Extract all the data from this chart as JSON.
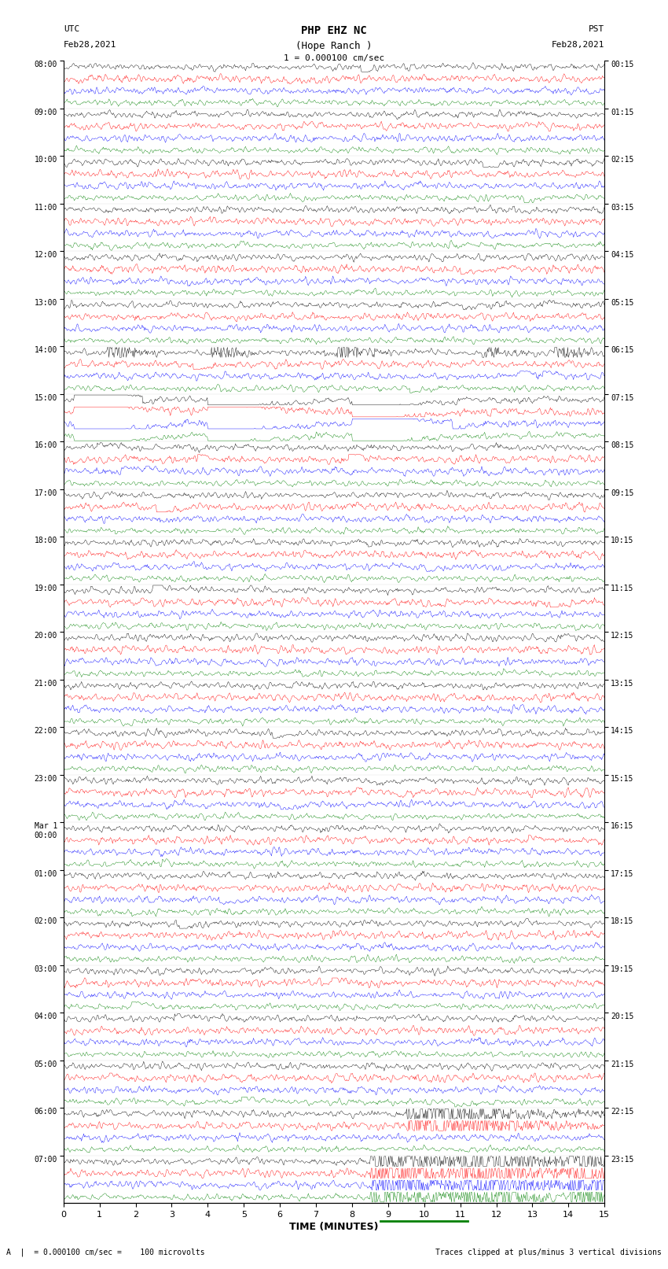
{
  "title_line1": "PHP EHZ NC",
  "title_line2": "(Hope Ranch )",
  "title_line3": "1 = 0.000100 cm/sec",
  "left_header_line1": "UTC",
  "left_header_line2": "Feb28,2021",
  "right_header_line1": "PST",
  "right_header_line2": "Feb28,2021",
  "xlabel": "TIME (MINUTES)",
  "footer_left": "A  |  = 0.000100 cm/sec =    100 microvolts",
  "footer_right": "Traces clipped at plus/minus 3 vertical divisions",
  "utc_labels": [
    "08:00",
    "09:00",
    "10:00",
    "11:00",
    "12:00",
    "13:00",
    "14:00",
    "15:00",
    "16:00",
    "17:00",
    "18:00",
    "19:00",
    "20:00",
    "21:00",
    "22:00",
    "23:00",
    "Mar 1\n00:00",
    "01:00",
    "02:00",
    "03:00",
    "04:00",
    "05:00",
    "06:00",
    "07:00"
  ],
  "pst_labels": [
    "00:15",
    "01:15",
    "02:15",
    "03:15",
    "04:15",
    "05:15",
    "06:15",
    "07:15",
    "08:15",
    "09:15",
    "10:15",
    "11:15",
    "12:15",
    "13:15",
    "14:15",
    "15:15",
    "16:15",
    "17:15",
    "18:15",
    "19:15",
    "20:15",
    "21:15",
    "22:15",
    "23:15"
  ],
  "xticks": [
    0,
    1,
    2,
    3,
    4,
    5,
    6,
    7,
    8,
    9,
    10,
    11,
    12,
    13,
    14,
    15
  ],
  "trace_colors": [
    "black",
    "red",
    "blue",
    "green"
  ],
  "bg_color": "white",
  "plot_bg": "white",
  "num_hours": 24,
  "traces_per_hour": 4,
  "time_minutes": 15,
  "seed": 42
}
